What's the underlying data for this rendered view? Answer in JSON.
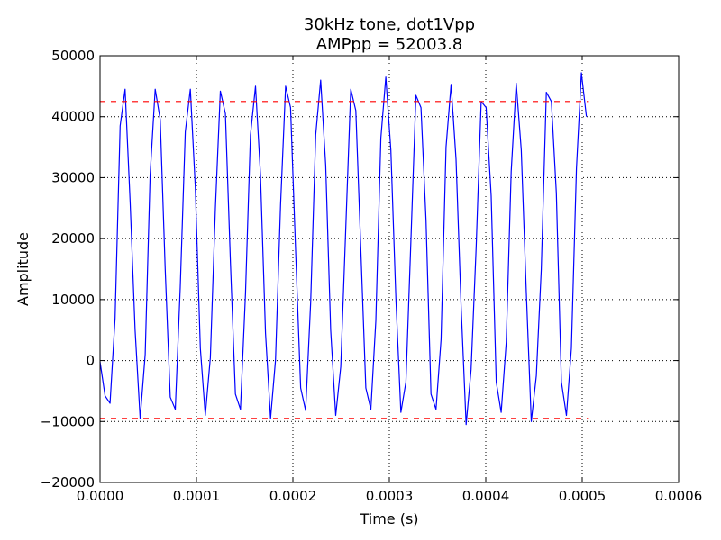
{
  "chart_data": {
    "type": "line",
    "title_line1": "30kHz tone, dot1Vpp",
    "title_line2": "AMPpp = 52003.8",
    "xlabel": "Time (s)",
    "ylabel": "Amplitude",
    "xlim": [
      0,
      0.0006
    ],
    "ylim": [
      -20000,
      50000
    ],
    "x_ticks": [
      0,
      0.0001,
      0.0002,
      0.0003,
      0.0004,
      0.0005,
      0.0006
    ],
    "x_tick_labels": [
      "0.0000",
      "0.0001",
      "0.0002",
      "0.0003",
      "0.0004",
      "0.0005",
      "0.0006"
    ],
    "y_ticks": [
      -20000,
      -10000,
      0,
      10000,
      20000,
      30000,
      40000,
      50000
    ],
    "y_tick_labels": [
      "−20000",
      "−10000",
      "0",
      "10000",
      "20000",
      "30000",
      "40000",
      "50000"
    ],
    "grid": true,
    "series": [
      {
        "color": "#0000ff",
        "style": "solid",
        "x": [
          0.0,
          5.2e-06,
          1.04e-05,
          1.56e-05,
          2.08e-05,
          2.6e-05,
          3.12e-05,
          3.64e-05,
          4.16e-05,
          4.68e-05,
          5.2e-05,
          5.72e-05,
          6.24e-05,
          6.76e-05,
          7.28e-05,
          7.8e-05,
          8.32e-05,
          8.84e-05,
          9.36e-05,
          9.88e-05,
          0.000104,
          0.0001092,
          0.0001144,
          0.0001196,
          0.0001248,
          0.00013,
          0.0001352,
          0.0001404,
          0.0001456,
          0.0001508,
          0.000156,
          0.0001612,
          0.0001664,
          0.0001716,
          0.0001768,
          0.000182,
          0.0001872,
          0.0001924,
          0.0001976,
          0.0002028,
          0.000208,
          0.0002132,
          0.0002184,
          0.0002236,
          0.0002288,
          0.000234,
          0.0002392,
          0.0002444,
          0.0002496,
          0.0002548,
          0.00026,
          0.0002652,
          0.0002704,
          0.0002756,
          0.0002808,
          0.000286,
          0.0002912,
          0.0002964,
          0.0003016,
          0.0003068,
          0.000312,
          0.0003172,
          0.0003224,
          0.0003276,
          0.0003328,
          0.000338,
          0.0003432,
          0.0003484,
          0.0003536,
          0.0003588,
          0.000364,
          0.0003692,
          0.0003744,
          0.0003796,
          0.0003848,
          0.00039,
          0.0003952,
          0.0004004,
          0.0004056,
          0.0004108,
          0.000416,
          0.0004212,
          0.0004264,
          0.0004316,
          0.0004368,
          0.000442,
          0.0004472,
          0.0004524,
          0.0004576,
          0.0004628,
          0.000468,
          0.0004732,
          0.0004784,
          0.0004836,
          0.0004888,
          0.000494,
          0.0004992,
          0.0005044
        ],
        "y": [
          -200,
          -5800,
          -7000,
          7000,
          38500,
          44500,
          26000,
          5000,
          -9500,
          1000,
          30500,
          44500,
          39500,
          15000,
          -6000,
          -8000,
          12000,
          37500,
          44500,
          28500,
          2000,
          -9000,
          500,
          25000,
          44200,
          40500,
          16000,
          -5500,
          -8000,
          11000,
          37000,
          45000,
          30500,
          4500,
          -9500,
          100,
          25500,
          45000,
          41500,
          18000,
          -4500,
          -8200,
          9500,
          37000,
          46000,
          32000,
          5000,
          -9000,
          -1000,
          21500,
          44500,
          41000,
          18500,
          -4500,
          -8000,
          6500,
          36500,
          46500,
          34500,
          10000,
          -8500,
          -3500,
          20000,
          43500,
          41500,
          23000,
          -5500,
          -8000,
          3500,
          35000,
          45300,
          33000,
          9000,
          -10500,
          -1500,
          18500,
          42500,
          41500,
          27000,
          -3500,
          -8500,
          3000,
          31000,
          45500,
          34500,
          11500,
          -10000,
          -2500,
          15000,
          44000,
          42500,
          27500,
          -3500,
          -9000,
          2000,
          31500,
          47200,
          40000
        ]
      },
      {
        "color": "#ff0000",
        "style": "dashed",
        "x": [
          0.0,
          0.000506
        ],
        "y": [
          42500,
          42500
        ]
      },
      {
        "color": "#ff0000",
        "style": "dashed",
        "x": [
          0.0,
          0.000506
        ],
        "y": [
          -9500,
          -9500
        ]
      }
    ]
  }
}
